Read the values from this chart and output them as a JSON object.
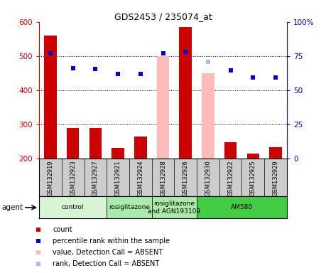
{
  "title": "GDS2453 / 235074_at",
  "samples": [
    "GSM132919",
    "GSM132923",
    "GSM132927",
    "GSM132921",
    "GSM132924",
    "GSM132928",
    "GSM132926",
    "GSM132930",
    "GSM132922",
    "GSM132925",
    "GSM132929"
  ],
  "bar_values": [
    560,
    290,
    290,
    230,
    265,
    500,
    585,
    450,
    248,
    213,
    232
  ],
  "bar_absent": [
    false,
    false,
    false,
    false,
    false,
    true,
    false,
    true,
    false,
    false,
    false
  ],
  "dot_values": [
    507,
    463,
    461,
    447,
    448,
    507,
    511,
    483,
    457,
    437,
    436
  ],
  "dot_absent": [
    false,
    false,
    false,
    false,
    false,
    false,
    false,
    true,
    false,
    false,
    false
  ],
  "ylim_left": [
    200,
    600
  ],
  "ylim_right": [
    0,
    100
  ],
  "yticks_left": [
    200,
    300,
    400,
    500,
    600
  ],
  "yticks_right": [
    0,
    25,
    50,
    75,
    100
  ],
  "agent_groups": [
    {
      "label": "control",
      "start": 0,
      "end": 3,
      "color": "#d6f5d6"
    },
    {
      "label": "rosiglitazone",
      "start": 3,
      "end": 5,
      "color": "#aaeaaa"
    },
    {
      "label": "rosiglitazone\nand AGN193109",
      "start": 5,
      "end": 7,
      "color": "#aaeaaa"
    },
    {
      "label": "AM580",
      "start": 7,
      "end": 11,
      "color": "#44cc44"
    }
  ],
  "bar_color_normal": "#cc0000",
  "bar_color_absent": "#ffbbbb",
  "dot_color_normal": "#0000cc",
  "dot_color_absent": "#aabbee",
  "bg_color": "#ffffff",
  "sample_bg": "#cccccc",
  "grid_color": "#000000",
  "left_label_color": "#cc0000",
  "right_label_color": "#0000cc",
  "gridlines_at": [
    300,
    400,
    500
  ],
  "dot_marker": "s",
  "dot_size": 5,
  "bar_width": 0.55
}
